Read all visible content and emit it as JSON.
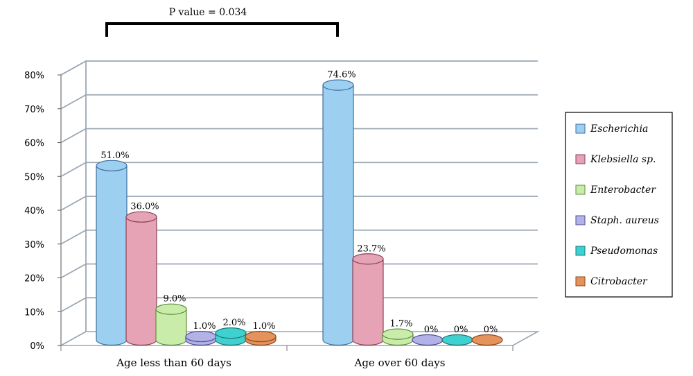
{
  "chart_data": {
    "type": "bar",
    "categories": [
      "Age less than 60 days",
      "Age over 60 days"
    ],
    "series": [
      {
        "name": "Escherichia",
        "values": [
          51.0,
          74.6
        ],
        "labels": [
          "51.0%",
          "74.6%"
        ],
        "color": "#9dcff0",
        "stroke": "#3f6f9f"
      },
      {
        "name": "Klebsiella sp.",
        "values": [
          36.0,
          23.7
        ],
        "labels": [
          "36.0%",
          "23.7%"
        ],
        "color": "#e6a3b5",
        "stroke": "#8a4258"
      },
      {
        "name": "Enterobacter",
        "values": [
          9.0,
          1.7
        ],
        "labels": [
          "9.0%",
          "1.7%"
        ],
        "color": "#c9ecaa",
        "stroke": "#5f8f3a"
      },
      {
        "name": "Staph. aureus",
        "values": [
          1.0,
          0
        ],
        "labels": [
          "1.0%",
          "0%"
        ],
        "color": "#b3b2e6",
        "stroke": "#4f4f95"
      },
      {
        "name": "Pseudomonas",
        "values": [
          2.0,
          0
        ],
        "labels": [
          "2.0%",
          "0%"
        ],
        "color": "#3fd0d0",
        "stroke": "#1b7878"
      },
      {
        "name": "Citrobacter",
        "values": [
          1.0,
          0
        ],
        "labels": [
          "1.0%",
          "0%"
        ],
        "color": "#e5925c",
        "stroke": "#8a4a1e"
      }
    ],
    "y_ticks": [
      "0%",
      "10%",
      "20%",
      "30%",
      "40%",
      "50%",
      "60%",
      "70%",
      "80%"
    ],
    "ylim": [
      0,
      80
    ],
    "annotation": "P value = 0.034",
    "grid": true,
    "legend_position": "right"
  }
}
